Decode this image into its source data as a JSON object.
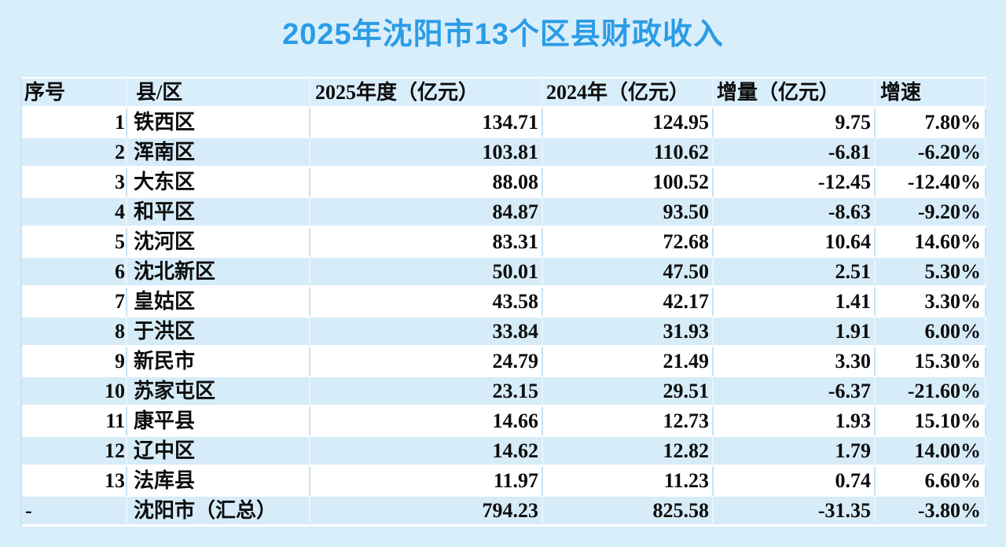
{
  "title": "2025年沈阳市13个区县财政收入",
  "colors": {
    "page_bg": "#d9eefb",
    "stripe_row_bg": "#d6ecf8",
    "title_accent": "#2b9ce6",
    "text": "#0d0d0d",
    "grid_vertical": "#c8e2f2",
    "grid_horizontal": "#ffffff"
  },
  "table": {
    "columns": [
      "序号",
      "县/区",
      "2025年度（亿元）",
      "2024年（亿元）",
      "增量（亿元）",
      "增速"
    ],
    "rows": [
      {
        "no": "1",
        "district": "铁西区",
        "y2025": "134.71",
        "y2024": "124.95",
        "delta": "9.75",
        "growth": "7.80%"
      },
      {
        "no": "2",
        "district": "浑南区",
        "y2025": "103.81",
        "y2024": "110.62",
        "delta": "-6.81",
        "growth": "-6.20%"
      },
      {
        "no": "3",
        "district": "大东区",
        "y2025": "88.08",
        "y2024": "100.52",
        "delta": "-12.45",
        "growth": "-12.40%"
      },
      {
        "no": "4",
        "district": "和平区",
        "y2025": "84.87",
        "y2024": "93.50",
        "delta": "-8.63",
        "growth": "-9.20%"
      },
      {
        "no": "5",
        "district": "沈河区",
        "y2025": "83.31",
        "y2024": "72.68",
        "delta": "10.64",
        "growth": "14.60%"
      },
      {
        "no": "6",
        "district": "沈北新区",
        "y2025": "50.01",
        "y2024": "47.50",
        "delta": "2.51",
        "growth": "5.30%"
      },
      {
        "no": "7",
        "district": "皇姑区",
        "y2025": "43.58",
        "y2024": "42.17",
        "delta": "1.41",
        "growth": "3.30%"
      },
      {
        "no": "8",
        "district": "于洪区",
        "y2025": "33.84",
        "y2024": "31.93",
        "delta": "1.91",
        "growth": "6.00%"
      },
      {
        "no": "9",
        "district": "新民市",
        "y2025": "24.79",
        "y2024": "21.49",
        "delta": "3.30",
        "growth": "15.30%"
      },
      {
        "no": "10",
        "district": "苏家屯区",
        "y2025": "23.15",
        "y2024": "29.51",
        "delta": "-6.37",
        "growth": "-21.60%"
      },
      {
        "no": "11",
        "district": "康平县",
        "y2025": "14.66",
        "y2024": "12.73",
        "delta": "1.93",
        "growth": "15.10%"
      },
      {
        "no": "12",
        "district": "辽中区",
        "y2025": "14.62",
        "y2024": "12.82",
        "delta": "1.79",
        "growth": "14.00%"
      },
      {
        "no": "13",
        "district": "法库县",
        "y2025": "11.97",
        "y2024": "11.23",
        "delta": "0.74",
        "growth": "6.60%"
      },
      {
        "no": "-",
        "district": "沈阳市（汇总）",
        "y2025": "794.23",
        "y2024": "825.58",
        "delta": "-31.35",
        "growth": "-3.80%"
      }
    ]
  }
}
